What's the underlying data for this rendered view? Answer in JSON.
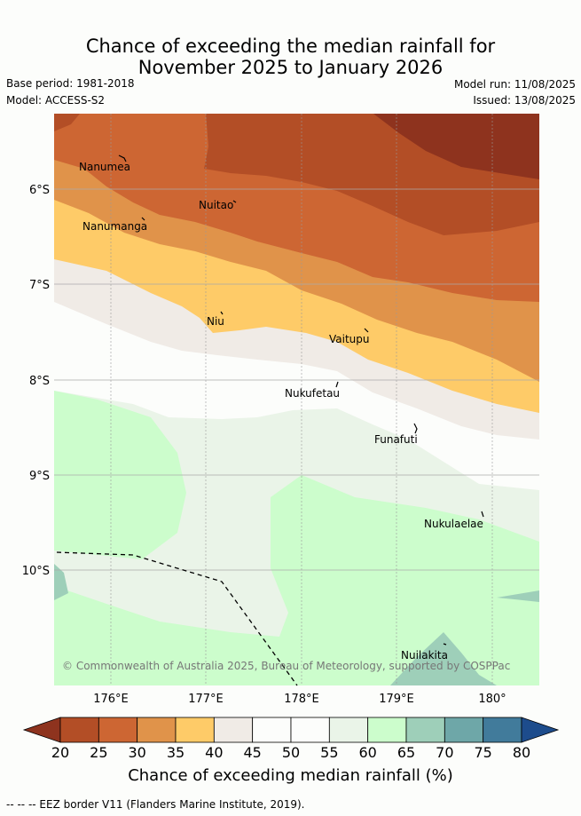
{
  "title_line1": "Chance of exceeding the median rainfall for",
  "title_line2": "November 2025 to January 2026",
  "base_period": "Base period: 1981-2018",
  "model": "Model: ACCESS-S2",
  "model_run": "Model run: 11/08/2025",
  "issued": "Issued: 13/08/2025",
  "lat_labels": [
    "6°S",
    "7°S",
    "8°S",
    "9°S",
    "10°S"
  ],
  "lon_labels": [
    "176°E",
    "177°E",
    "178°E",
    "179°E",
    "180°"
  ],
  "islands": [
    "Nanumea",
    "Nuitao",
    "Nanumanga",
    "Niu",
    "Vaitupu",
    "Nukufetau",
    "Funafuti",
    "Nukulaelae",
    "Nuilakita"
  ],
  "copyright": "© Commonwealth of Australia 2025, Bureau of Meteorology, supported by COSPPac",
  "colorbar": {
    "ticks": [
      "20",
      "25",
      "30",
      "35",
      "40",
      "45",
      "50",
      "55",
      "60",
      "65",
      "70",
      "75",
      "80"
    ],
    "colors": [
      "#b34e26",
      "#cd6633",
      "#e0934a",
      "#fecb68",
      "#f0ebe6",
      "#fcfdfb",
      "#fcfdfb",
      "#eaf4e8",
      "#ccfdcc",
      "#9ecfb9",
      "#6ea7a8",
      "#417b9b"
    ],
    "below_color": "#8e331e",
    "above_color": "#1d4c8c",
    "label": "Chance of exceeding median rainfall (%)"
  },
  "footer": "-- -- -- EEZ border V11 (Flanders Marine Institute, 2019)."
}
